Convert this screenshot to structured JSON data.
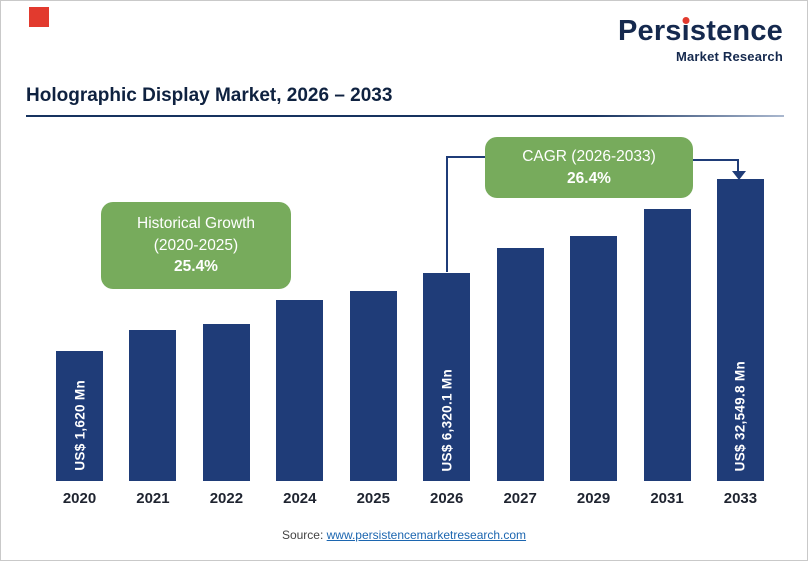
{
  "page": {
    "title": "Holographic Display Market, 2026 – 2033",
    "source_prefix": "Source:",
    "source_link": "www.persistencemarketresearch.com"
  },
  "logo": {
    "part1": "Pers",
    "part2": "i",
    "part3": "stence",
    "subtitle": "Market Research"
  },
  "colors": {
    "bar_navy": "#1f3c78",
    "callout_green": "#77ab5c",
    "title_navy": "#0f2240",
    "accent_red": "#e23a2e",
    "link_blue": "#1c66b0"
  },
  "chart_data": {
    "type": "bar",
    "title": "Holographic Display Market, 2026 – 2033",
    "categories": [
      "2020",
      "2021",
      "2022",
      "2024",
      "2025",
      "2026",
      "2027",
      "2029",
      "2031",
      "2033"
    ],
    "values_us_mn": [
      1620,
      null,
      null,
      null,
      null,
      6320.1,
      null,
      null,
      null,
      32549.8
    ],
    "bar_value_labels": [
      "US$ 1,620 Mn",
      "",
      "",
      "",
      "",
      "US$ 6,320.1 Mn",
      "",
      "",
      "",
      "US$ 32,549.8 Mn"
    ],
    "bar_heights_pct": [
      43,
      50,
      52,
      60,
      63,
      69,
      77,
      81,
      90,
      100
    ],
    "bar_color": "#1f3c78",
    "xlabel": "",
    "ylabel": "",
    "grid": false,
    "legend": "none",
    "annotations": [
      {
        "name": "historical-growth",
        "line1": "Historical Growth",
        "line2": "(2020-2025)",
        "value": "25.4%"
      },
      {
        "name": "cagr",
        "line1": "CAGR (2026-2033)",
        "value": "26.4%"
      }
    ]
  }
}
